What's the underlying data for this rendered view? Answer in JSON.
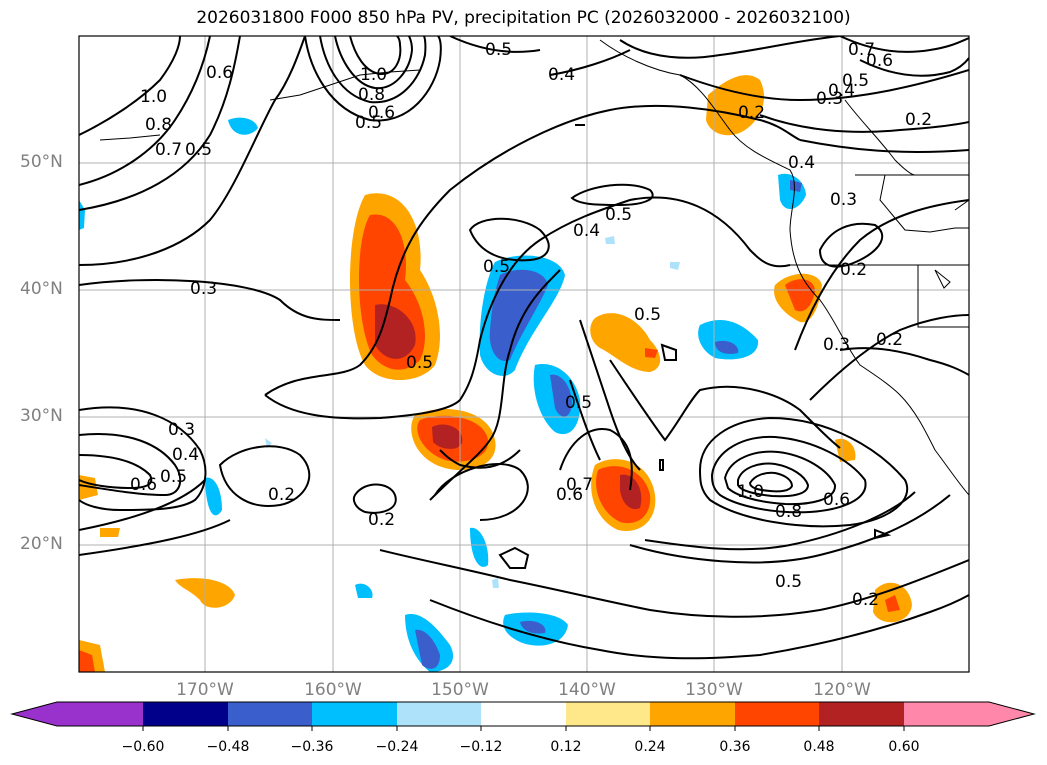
{
  "title": "2026031800 F000 850 hPa PV, precipitation PC (2026032000 - 2026032100)",
  "lat_labels": [
    "50°N",
    "40°N",
    "30°N",
    "20°N"
  ],
  "lon_labels": [
    "170°W",
    "160°W",
    "150°W",
    "140°W",
    "130°W",
    "120°W"
  ],
  "colorbar": {
    "ticks": [
      "−0.60",
      "−0.48",
      "−0.36",
      "−0.24",
      "−0.12",
      "0.12",
      "0.24",
      "0.36",
      "0.48",
      "0.60"
    ],
    "colors": [
      "#9932CC",
      "#00008B",
      "#3A5FCD",
      "#00BFFF",
      "#AEE2FA",
      "#FFFFFF",
      "#FFE88A",
      "#FFA500",
      "#FF4500",
      "#B22222",
      "#FF88AA"
    ]
  },
  "contour_labels": [
    "1.0",
    "0.8",
    "0.7",
    "0.5",
    "0.6",
    "1.0",
    "0.8",
    "0.6",
    "0.5",
    "0.5",
    "0.4",
    "0.7",
    "0.6",
    "0.5",
    "0.4",
    "0.3",
    "0.2",
    "0.2",
    "0.4",
    "0.3",
    "0.5",
    "0.4",
    "0.5",
    "0.3",
    "0.2",
    "0.3",
    "0.2",
    "0.5",
    "0.5",
    "0.5",
    "0.3",
    "0.4",
    "0.5",
    "0.6",
    "0.2",
    "0.2",
    "0.7",
    "0.6",
    "1.0",
    "0.8",
    "0.6",
    "0.5",
    "0.2"
  ],
  "colors": {
    "frame": "#000000",
    "grid": "#b0b0b0",
    "axis_text": "#808080"
  }
}
